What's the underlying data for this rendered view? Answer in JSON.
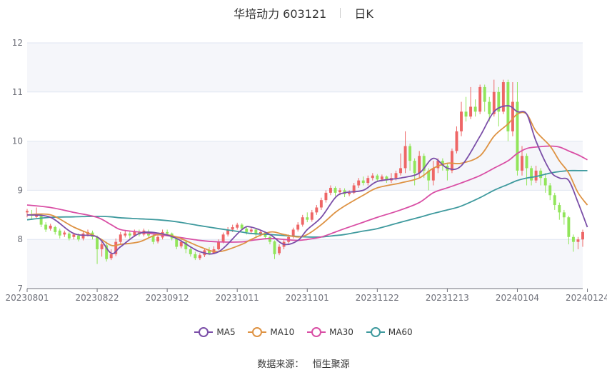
{
  "header": {
    "title": "华培动力 603121",
    "period": "日K"
  },
  "footer": {
    "source_label": "数据来源：",
    "source_value": "恒生聚源"
  },
  "colors": {
    "up": "#ee6666",
    "down": "#91e55a",
    "MA5": "#7b4fa8",
    "MA10": "#de9344",
    "MA30": "#d94fa5",
    "MA60": "#3f9a9e",
    "band": "#f5f6fa",
    "grid": "#e0e6f1"
  },
  "chart_data": {
    "type": "candlestick",
    "ylim": [
      7,
      12
    ],
    "y_ticks": [
      "7",
      "8",
      "9",
      "10",
      "11",
      "12"
    ],
    "x_tick_labels": [
      "20230801",
      "20230822",
      "20230912",
      "20231011",
      "20231101",
      "20231122",
      "20231213",
      "20240104",
      "20240124"
    ],
    "x_tick_index": [
      0,
      15,
      30,
      45,
      60,
      75,
      90,
      105,
      120
    ],
    "legend": [
      "MA5",
      "MA10",
      "MA30",
      "MA60"
    ],
    "candles": [
      [
        8.55,
        8.58,
        8.62,
        8.45
      ],
      [
        8.5,
        8.48,
        8.6,
        8.4
      ],
      [
        8.46,
        8.52,
        8.65,
        8.44
      ],
      [
        8.5,
        8.3,
        8.52,
        8.25
      ],
      [
        8.3,
        8.2,
        8.35,
        8.15
      ],
      [
        8.22,
        8.28,
        8.32,
        8.18
      ],
      [
        8.25,
        8.15,
        8.28,
        8.1
      ],
      [
        8.18,
        8.08,
        8.22,
        8.02
      ],
      [
        8.1,
        8.14,
        8.18,
        8.05
      ],
      [
        8.12,
        8.02,
        8.15,
        7.98
      ],
      [
        8.05,
        8.1,
        8.14,
        8.0
      ],
      [
        8.08,
        8.0,
        8.12,
        7.96
      ],
      [
        8.02,
        8.12,
        8.18,
        7.98
      ],
      [
        8.1,
        8.15,
        8.2,
        8.06
      ],
      [
        8.14,
        8.05,
        8.18,
        8.0
      ],
      [
        8.05,
        7.8,
        8.08,
        7.5
      ],
      [
        7.8,
        7.9,
        8.0,
        7.65
      ],
      [
        7.88,
        7.6,
        7.95,
        7.55
      ],
      [
        7.62,
        7.7,
        7.8,
        7.58
      ],
      [
        7.7,
        7.95,
        8.02,
        7.66
      ],
      [
        7.95,
        8.1,
        8.15,
        7.9
      ],
      [
        8.08,
        8.12,
        8.18,
        8.04
      ],
      [
        8.12,
        8.08,
        8.16,
        8.02
      ],
      [
        8.08,
        8.15,
        8.2,
        8.05
      ],
      [
        8.15,
        8.1,
        8.2,
        8.06
      ],
      [
        8.1,
        8.18,
        8.22,
        8.06
      ],
      [
        8.16,
        8.08,
        8.2,
        8.04
      ],
      [
        8.08,
        7.95,
        8.1,
        7.9
      ],
      [
        7.96,
        8.05,
        8.12,
        7.92
      ],
      [
        8.04,
        8.15,
        8.2,
        8.0
      ],
      [
        8.15,
        8.12,
        8.2,
        8.08
      ],
      [
        8.12,
        8.02,
        8.14,
        7.98
      ],
      [
        8.02,
        7.85,
        8.05,
        7.8
      ],
      [
        7.86,
        7.95,
        8.0,
        7.82
      ],
      [
        7.95,
        7.8,
        7.98,
        7.72
      ],
      [
        7.8,
        7.7,
        7.85,
        7.65
      ],
      [
        7.7,
        7.62,
        7.75,
        7.58
      ],
      [
        7.62,
        7.68,
        7.72,
        7.58
      ],
      [
        7.68,
        7.78,
        7.82,
        7.64
      ],
      [
        7.78,
        7.72,
        7.84,
        7.68
      ],
      [
        7.72,
        7.8,
        7.86,
        7.7
      ],
      [
        7.8,
        7.95,
        8.0,
        7.78
      ],
      [
        7.95,
        8.1,
        8.14,
        7.92
      ],
      [
        8.1,
        8.2,
        8.25,
        8.06
      ],
      [
        8.2,
        8.25,
        8.3,
        8.15
      ],
      [
        8.24,
        8.3,
        8.34,
        8.2
      ],
      [
        8.3,
        8.22,
        8.33,
        8.18
      ],
      [
        8.22,
        8.15,
        8.25,
        8.1
      ],
      [
        8.16,
        8.2,
        8.24,
        8.12
      ],
      [
        8.2,
        8.1,
        8.23,
        8.05
      ],
      [
        8.1,
        8.15,
        8.18,
        8.06
      ],
      [
        8.14,
        8.05,
        8.16,
        8.0
      ],
      [
        8.05,
        7.95,
        8.08,
        7.9
      ],
      [
        7.96,
        7.7,
        7.98,
        7.6
      ],
      [
        7.72,
        7.85,
        7.9,
        7.68
      ],
      [
        7.85,
        7.95,
        8.0,
        7.8
      ],
      [
        7.95,
        8.05,
        8.1,
        7.92
      ],
      [
        8.05,
        8.2,
        8.24,
        8.02
      ],
      [
        8.2,
        8.3,
        8.35,
        8.16
      ],
      [
        8.3,
        8.45,
        8.5,
        8.26
      ],
      [
        8.45,
        8.4,
        8.55,
        8.35
      ],
      [
        8.4,
        8.55,
        8.6,
        8.36
      ],
      [
        8.55,
        8.65,
        8.7,
        8.5
      ],
      [
        8.65,
        8.8,
        8.85,
        8.6
      ],
      [
        8.8,
        8.95,
        9.0,
        8.75
      ],
      [
        8.95,
        9.05,
        9.1,
        8.9
      ],
      [
        9.05,
        8.95,
        9.08,
        8.88
      ],
      [
        8.96,
        9.0,
        9.05,
        8.9
      ],
      [
        9.0,
        8.92,
        9.04,
        8.86
      ],
      [
        8.92,
        8.95,
        9.0,
        8.88
      ],
      [
        8.95,
        9.1,
        9.15,
        8.92
      ],
      [
        9.1,
        9.2,
        9.25,
        9.05
      ],
      [
        9.2,
        9.15,
        9.28,
        9.1
      ],
      [
        9.15,
        9.25,
        9.3,
        9.1
      ],
      [
        9.25,
        9.3,
        9.35,
        9.2
      ],
      [
        9.3,
        9.22,
        9.33,
        9.18
      ],
      [
        9.22,
        9.28,
        9.32,
        9.18
      ],
      [
        9.28,
        9.2,
        9.3,
        9.15
      ],
      [
        9.2,
        9.25,
        9.35,
        9.15
      ],
      [
        9.25,
        9.35,
        9.4,
        9.2
      ],
      [
        9.35,
        9.45,
        9.75,
        9.3
      ],
      [
        9.45,
        9.9,
        10.2,
        9.35
      ],
      [
        9.9,
        9.6,
        9.95,
        9.4
      ],
      [
        9.6,
        9.35,
        9.65,
        9.1
      ],
      [
        9.35,
        9.7,
        9.8,
        9.25
      ],
      [
        9.7,
        9.4,
        9.75,
        9.25
      ],
      [
        9.4,
        9.2,
        9.45,
        9.0
      ],
      [
        9.2,
        9.45,
        9.6,
        9.1
      ],
      [
        9.45,
        9.6,
        9.65,
        9.35
      ],
      [
        9.6,
        9.5,
        9.65,
        9.4
      ],
      [
        9.5,
        9.4,
        9.55,
        9.2
      ],
      [
        9.4,
        9.8,
        9.85,
        9.35
      ],
      [
        9.8,
        10.2,
        10.3,
        9.75
      ],
      [
        10.2,
        10.6,
        10.8,
        10.1
      ],
      [
        10.6,
        10.5,
        10.9,
        10.4
      ],
      [
        10.5,
        10.7,
        11.1,
        10.45
      ],
      [
        10.7,
        10.6,
        10.85,
        10.5
      ],
      [
        10.6,
        11.1,
        11.15,
        10.55
      ],
      [
        11.1,
        10.8,
        11.15,
        10.6
      ],
      [
        10.8,
        10.55,
        10.9,
        10.4
      ],
      [
        10.55,
        11.0,
        11.25,
        10.5
      ],
      [
        11.0,
        10.6,
        11.1,
        10.3
      ],
      [
        10.6,
        11.2,
        11.25,
        10.55
      ],
      [
        11.2,
        10.2,
        11.25,
        10.0
      ],
      [
        10.2,
        10.8,
        11.2,
        10.1
      ],
      [
        10.8,
        9.4,
        11.2,
        9.3
      ],
      [
        9.4,
        9.7,
        9.9,
        9.3
      ],
      [
        9.7,
        9.45,
        9.75,
        9.1
      ],
      [
        9.45,
        9.2,
        9.5,
        9.1
      ],
      [
        9.2,
        9.4,
        9.5,
        9.15
      ],
      [
        9.4,
        9.25,
        9.45,
        9.1
      ],
      [
        9.25,
        9.1,
        9.35,
        8.95
      ],
      [
        9.1,
        8.9,
        9.15,
        8.8
      ],
      [
        8.9,
        8.7,
        8.95,
        8.6
      ],
      [
        8.7,
        8.55,
        8.75,
        8.4
      ],
      [
        8.55,
        8.45,
        8.6,
        8.3
      ],
      [
        8.45,
        8.05,
        8.48,
        7.9
      ],
      [
        8.05,
        7.95,
        8.1,
        7.75
      ],
      [
        7.95,
        8.0,
        8.05,
        7.8
      ],
      [
        8.0,
        8.15,
        8.2,
        7.85
      ]
    ],
    "ma": {
      "MA5": [
        [
          0,
          8.5
        ],
        [
          5,
          8.45
        ],
        [
          10,
          8.12
        ],
        [
          15,
          8.05
        ],
        [
          18,
          7.72
        ],
        [
          20,
          7.85
        ],
        [
          24,
          8.12
        ],
        [
          28,
          8.13
        ],
        [
          32,
          8.02
        ],
        [
          37,
          7.75
        ],
        [
          41,
          7.75
        ],
        [
          46,
          8.2
        ],
        [
          48,
          8.25
        ],
        [
          52,
          8.1
        ],
        [
          55,
          7.9
        ],
        [
          58,
          7.98
        ],
        [
          60,
          8.2
        ],
        [
          63,
          8.45
        ],
        [
          66,
          8.85
        ],
        [
          68,
          8.95
        ],
        [
          72,
          9.0
        ],
        [
          75,
          9.18
        ],
        [
          80,
          9.25
        ],
        [
          84,
          9.35
        ],
        [
          87,
          9.65
        ],
        [
          90,
          9.45
        ],
        [
          93,
          9.5
        ],
        [
          97,
          10.1
        ],
        [
          100,
          10.6
        ],
        [
          103,
          10.72
        ],
        [
          105,
          10.6
        ],
        [
          107,
          10.55
        ],
        [
          109,
          10.0
        ],
        [
          112,
          9.4
        ],
        [
          114,
          9.25
        ],
        [
          116,
          9.2
        ],
        [
          118,
          8.75
        ],
        [
          120,
          8.25
        ]
      ],
      "MA10": [
        [
          0,
          8.5
        ],
        [
          5,
          8.5
        ],
        [
          10,
          8.25
        ],
        [
          15,
          8.05
        ],
        [
          18,
          7.88
        ],
        [
          20,
          7.9
        ],
        [
          24,
          7.95
        ],
        [
          28,
          8.1
        ],
        [
          32,
          8.05
        ],
        [
          37,
          7.85
        ],
        [
          41,
          7.75
        ],
        [
          46,
          7.9
        ],
        [
          48,
          8.0
        ],
        [
          52,
          8.15
        ],
        [
          55,
          8.1
        ],
        [
          58,
          8.05
        ],
        [
          60,
          8.1
        ],
        [
          63,
          8.3
        ],
        [
          66,
          8.55
        ],
        [
          68,
          8.68
        ],
        [
          72,
          8.9
        ],
        [
          75,
          9.05
        ],
        [
          80,
          9.15
        ],
        [
          84,
          9.25
        ],
        [
          87,
          9.45
        ],
        [
          90,
          9.55
        ],
        [
          93,
          9.55
        ],
        [
          97,
          9.7
        ],
        [
          100,
          10.1
        ],
        [
          103,
          10.35
        ],
        [
          105,
          10.55
        ],
        [
          107,
          10.55
        ],
        [
          109,
          10.2
        ],
        [
          112,
          9.9
        ],
        [
          114,
          9.6
        ],
        [
          116,
          9.35
        ],
        [
          118,
          8.95
        ],
        [
          120,
          8.7
        ]
      ],
      "MA30": [
        [
          0,
          8.7
        ],
        [
          5,
          8.65
        ],
        [
          10,
          8.55
        ],
        [
          15,
          8.45
        ],
        [
          18,
          8.3
        ],
        [
          20,
          8.2
        ],
        [
          24,
          8.15
        ],
        [
          28,
          8.1
        ],
        [
          32,
          8.05
        ],
        [
          37,
          7.98
        ],
        [
          41,
          7.95
        ],
        [
          46,
          7.95
        ],
        [
          48,
          7.98
        ],
        [
          52,
          8.02
        ],
        [
          55,
          8.0
        ],
        [
          58,
          7.98
        ],
        [
          60,
          8.0
        ],
        [
          63,
          8.05
        ],
        [
          66,
          8.15
        ],
        [
          68,
          8.22
        ],
        [
          72,
          8.35
        ],
        [
          75,
          8.45
        ],
        [
          80,
          8.6
        ],
        [
          84,
          8.75
        ],
        [
          87,
          8.95
        ],
        [
          90,
          9.05
        ],
        [
          93,
          9.15
        ],
        [
          97,
          9.3
        ],
        [
          100,
          9.45
        ],
        [
          103,
          9.6
        ],
        [
          105,
          9.75
        ],
        [
          107,
          9.85
        ],
        [
          109,
          9.88
        ],
        [
          112,
          9.9
        ],
        [
          114,
          9.88
        ],
        [
          116,
          9.8
        ],
        [
          118,
          9.72
        ],
        [
          120,
          9.62
        ]
      ],
      "MA60": [
        [
          0,
          8.4
        ],
        [
          5,
          8.45
        ],
        [
          10,
          8.46
        ],
        [
          15,
          8.47
        ],
        [
          18,
          8.46
        ],
        [
          20,
          8.44
        ],
        [
          24,
          8.42
        ],
        [
          28,
          8.4
        ],
        [
          32,
          8.36
        ],
        [
          37,
          8.28
        ],
        [
          41,
          8.22
        ],
        [
          46,
          8.15
        ],
        [
          48,
          8.12
        ],
        [
          52,
          8.1
        ],
        [
          55,
          8.08
        ],
        [
          58,
          8.06
        ],
        [
          60,
          8.05
        ],
        [
          63,
          8.05
        ],
        [
          66,
          8.08
        ],
        [
          68,
          8.1
        ],
        [
          72,
          8.17
        ],
        [
          75,
          8.22
        ],
        [
          80,
          8.35
        ],
        [
          84,
          8.45
        ],
        [
          87,
          8.53
        ],
        [
          90,
          8.6
        ],
        [
          93,
          8.68
        ],
        [
          97,
          8.85
        ],
        [
          100,
          9.0
        ],
        [
          103,
          9.12
        ],
        [
          105,
          9.2
        ],
        [
          107,
          9.25
        ],
        [
          109,
          9.28
        ],
        [
          112,
          9.35
        ],
        [
          114,
          9.38
        ],
        [
          116,
          9.4
        ],
        [
          118,
          9.4
        ],
        [
          120,
          9.4
        ]
      ]
    }
  }
}
